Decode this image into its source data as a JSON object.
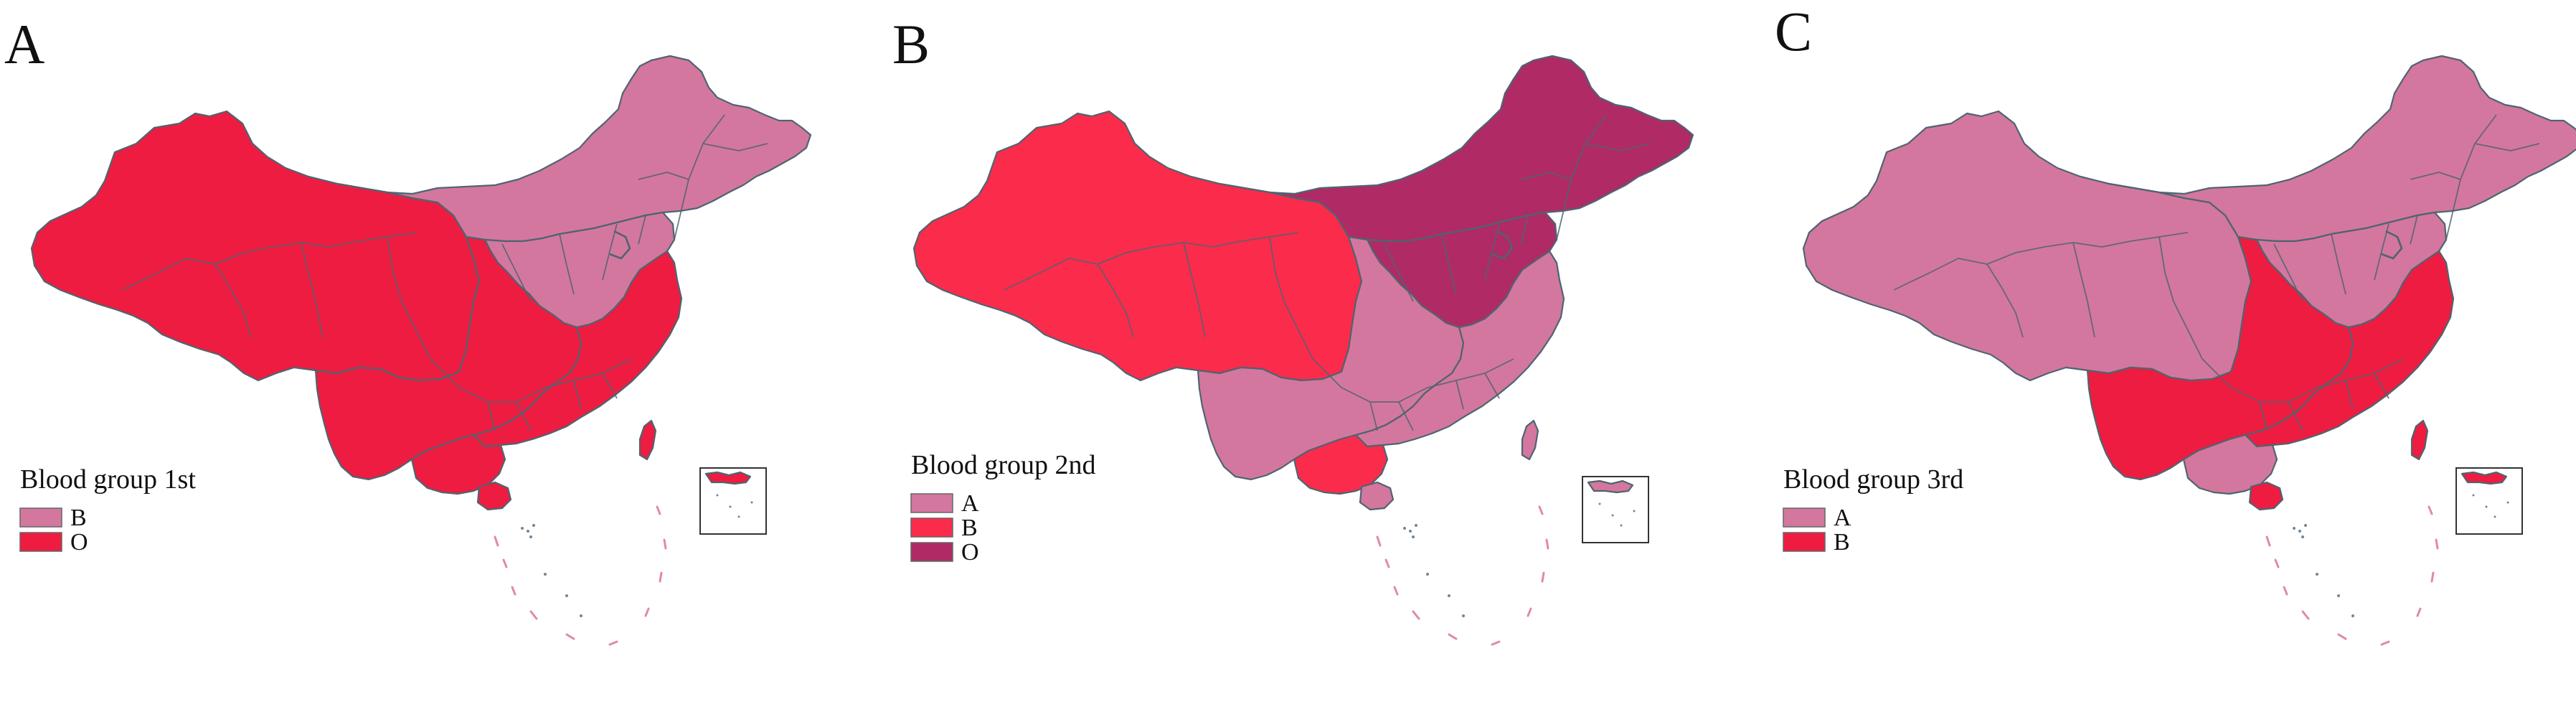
{
  "colors": {
    "A_pink": "#d4779e",
    "B_O_red": "#ee1c40",
    "B_bright_red": "#fb2b4b",
    "O_plum": "#b02a66",
    "B_red_3rd": "#ee1c40"
  },
  "panels": [
    {
      "letter": "A",
      "legend_title": "Blood group 1st",
      "legend": [
        {
          "label": "B",
          "color": "#d4779e"
        },
        {
          "label": "O",
          "color": "#ee1c40"
        }
      ],
      "regions": [
        {
          "region": "northwest-tibet-sichuan-west",
          "group": "O"
        },
        {
          "region": "north-northeast",
          "group": "B"
        },
        {
          "region": "north-china-plain",
          "group": "B"
        },
        {
          "region": "southwest-central",
          "group": "O"
        },
        {
          "region": "south-east",
          "group": "O"
        },
        {
          "region": "guangxi",
          "group": "O"
        },
        {
          "region": "hainan",
          "group": "O"
        },
        {
          "region": "taiwan",
          "group": "O"
        }
      ]
    },
    {
      "letter": "B",
      "legend_title": "Blood group 2nd",
      "legend": [
        {
          "label": "A",
          "color": "#d4779e"
        },
        {
          "label": "B",
          "color": "#fb2b4b"
        },
        {
          "label": "O",
          "color": "#b02a66"
        }
      ],
      "regions": [
        {
          "region": "northwest-tibet-sichuan-west",
          "group": "B"
        },
        {
          "region": "north-northeast",
          "group": "O"
        },
        {
          "region": "north-china-plain",
          "group": "O"
        },
        {
          "region": "southwest-central",
          "group": "A"
        },
        {
          "region": "south-east",
          "group": "A"
        },
        {
          "region": "guangxi",
          "group": "B"
        },
        {
          "region": "hainan",
          "group": "A"
        },
        {
          "region": "taiwan",
          "group": "A"
        }
      ]
    },
    {
      "letter": "C",
      "legend_title": "Blood group 3rd",
      "legend": [
        {
          "label": "A",
          "color": "#d4779e"
        },
        {
          "label": "B",
          "color": "#ee1c40"
        }
      ],
      "regions": [
        {
          "region": "northwest-tibet-sichuan-west",
          "group": "A"
        },
        {
          "region": "north-northeast",
          "group": "A"
        },
        {
          "region": "north-china-plain",
          "group": "A"
        },
        {
          "region": "southwest-central",
          "group": "B"
        },
        {
          "region": "south-east",
          "group": "B"
        },
        {
          "region": "guangxi",
          "group": "A"
        },
        {
          "region": "hainan",
          "group": "B"
        },
        {
          "region": "taiwan",
          "group": "B"
        }
      ]
    }
  ]
}
